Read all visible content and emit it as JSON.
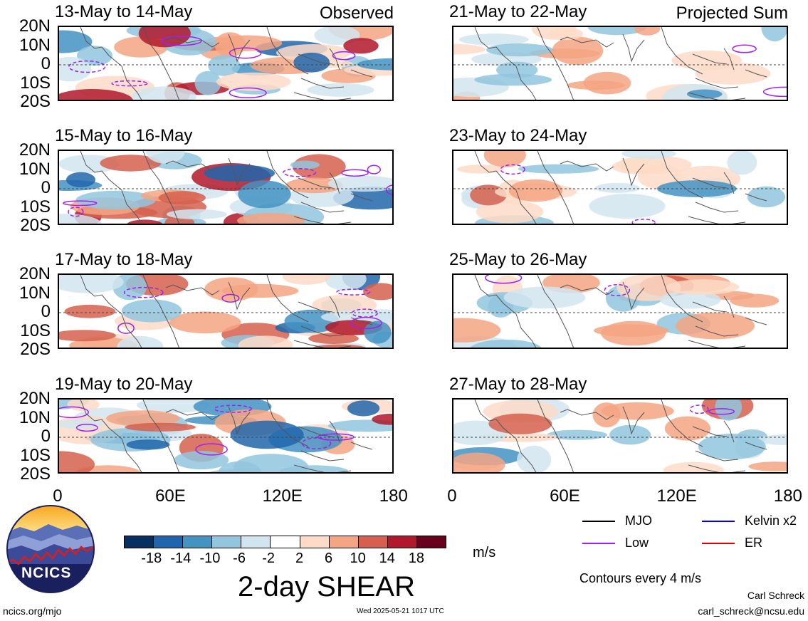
{
  "panels": [
    {
      "title": "13-May to 14-May",
      "corner": "Observed",
      "col": 0,
      "row": 0
    },
    {
      "title": "15-May to 16-May",
      "corner": "",
      "col": 0,
      "row": 1
    },
    {
      "title": "17-May to 18-May",
      "corner": "",
      "col": 0,
      "row": 2
    },
    {
      "title": "19-May to 20-May",
      "corner": "",
      "col": 0,
      "row": 3
    },
    {
      "title": "21-May to 22-May",
      "corner": "Projected Sum",
      "col": 1,
      "row": 0
    },
    {
      "title": "23-May to 24-May",
      "corner": "",
      "col": 1,
      "row": 1
    },
    {
      "title": "25-May to 26-May",
      "corner": "",
      "col": 1,
      "row": 2
    },
    {
      "title": "27-May to 28-May",
      "corner": "",
      "col": 1,
      "row": 3
    }
  ],
  "lat_labels": [
    "20N",
    "10N",
    "0",
    "10S",
    "20S"
  ],
  "lon_labels": [
    "0",
    "60E",
    "120E",
    "180"
  ],
  "colorbar": {
    "colors": [
      "#053061",
      "#2166ac",
      "#4393c3",
      "#92c5de",
      "#d1e5f0",
      "#ffffff",
      "#fddbc7",
      "#f4a582",
      "#d6604d",
      "#b2182b",
      "#67001f"
    ],
    "ticks": [
      "-18",
      "-14",
      "-10",
      "-6",
      "-2",
      "2",
      "6",
      "10",
      "14",
      "18"
    ],
    "units": "m/s"
  },
  "title": "2-day SHEAR",
  "legend": [
    {
      "label": "MJO",
      "color": "#000000"
    },
    {
      "label": "Kelvin x2",
      "color": "#0000ff"
    },
    {
      "label": "Low",
      "color": "#a020f0"
    },
    {
      "label": "ER",
      "color": "#e00000"
    }
  ],
  "contour_note": "Contours every 4 m/s",
  "logo_text": "NCICS",
  "footer": {
    "site": "ncics.org/mjo",
    "timestamp": "Wed 2025-05-21 1017 UTC",
    "author": "Carl Schreck",
    "email": "carl_schreck@ncsu.edu"
  }
}
